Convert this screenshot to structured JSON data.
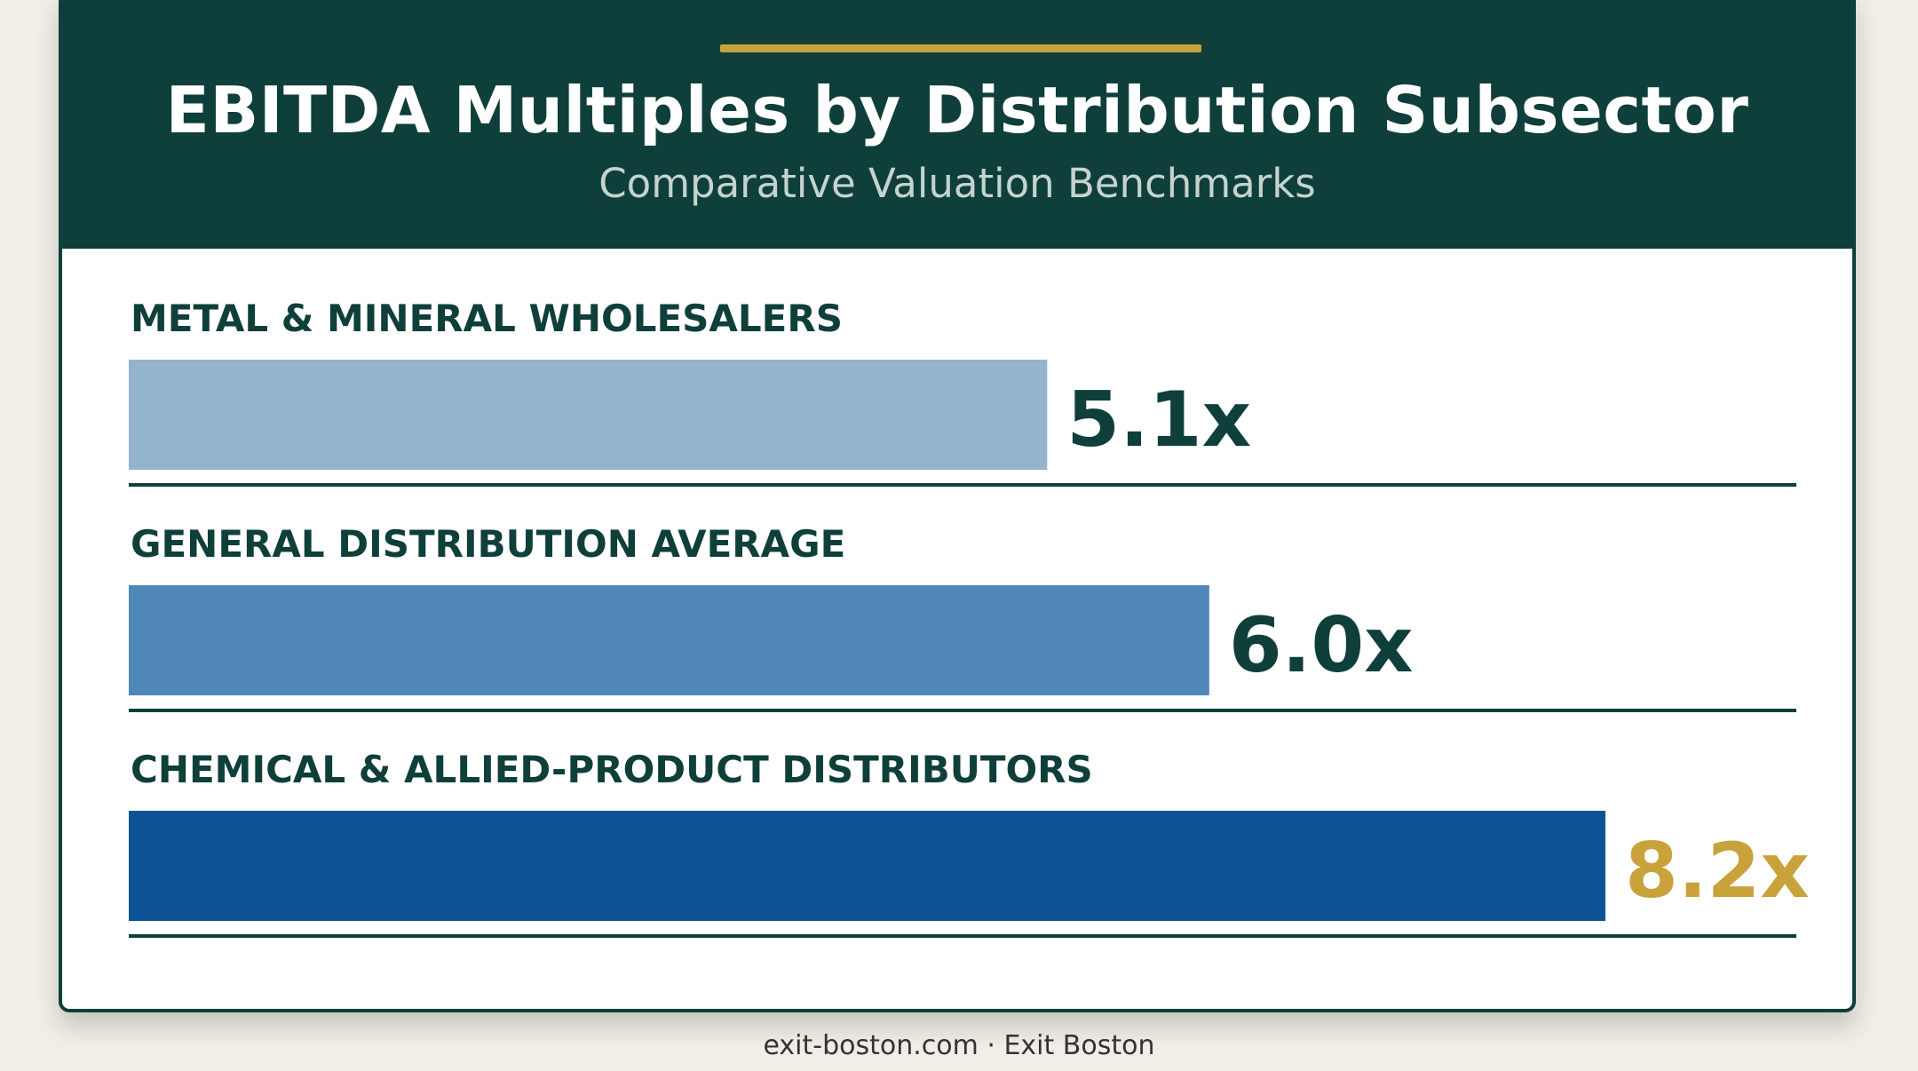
{
  "chart_data": {
    "type": "bar",
    "orientation": "horizontal",
    "title": "EBITDA Multiples by Distribution Subsector",
    "subtitle": "Comparative Valuation Benchmarks",
    "categories": [
      "METAL & MINERAL WHOLESALERS",
      "GENERAL DISTRIBUTION AVERAGE",
      "CHEMICAL & ALLIED-PRODUCT DISTRIBUTORS"
    ],
    "values": [
      5.1,
      6.0,
      8.2
    ],
    "value_labels": [
      "5.1x",
      "6.0x",
      "8.2x"
    ],
    "bar_colors": [
      "#94b3cc",
      "#4f87b8",
      "#0b5394"
    ],
    "value_label_colors": [
      "#0f3f3a",
      "#0f3f3a",
      "#c9a23c"
    ],
    "xlim": [
      0,
      8.2
    ],
    "grid": false,
    "legend": "none"
  },
  "colors": {
    "header_background": "#0f3f3a",
    "accent": "#c9a23c",
    "separator": "#0f3f3a"
  },
  "footer": "exit-boston.com · Exit Boston"
}
